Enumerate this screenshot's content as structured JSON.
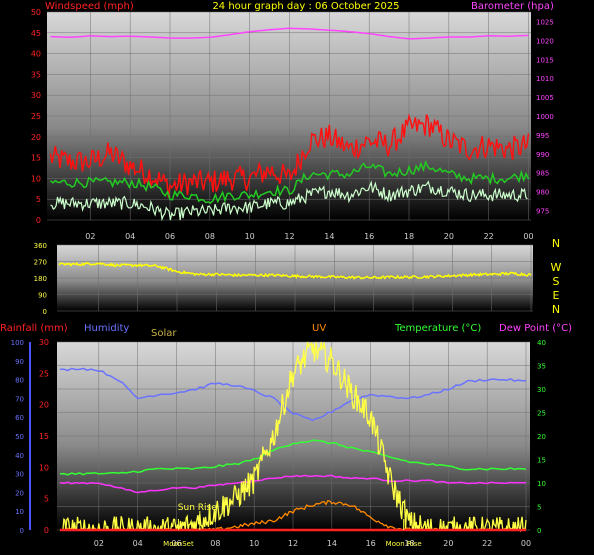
{
  "title": "24 hour graph day : 06 October 2025",
  "colors": {
    "wind_avg": "#22cc22",
    "wind_gust": "#ff1111",
    "wind_lull": "#ccffcc",
    "barometer": "#ff44ff",
    "direction": "#ffff00",
    "humidity": "#6a73ff",
    "temperature": "#33ff33",
    "dewpoint": "#ff33ff",
    "rainfall": "#ff2222",
    "solar": "#ffff44",
    "uv": "#ff8800",
    "bg_grid": "#000000",
    "label_compass": "#ffff00"
  },
  "chart_data": [
    {
      "type": "line",
      "panel": "wind-barometer",
      "x_ticks": [
        "02",
        "04",
        "06",
        "08",
        "10",
        "12",
        "14",
        "16",
        "18",
        "20",
        "22",
        "00"
      ],
      "left_axis": {
        "label": "Windspeed (mph)",
        "ticks": [
          "50",
          "45",
          "40",
          "35",
          "30",
          "25",
          "20",
          "15",
          "10",
          "5",
          "0"
        ],
        "ylim": [
          0,
          50
        ]
      },
      "right_axis": {
        "label": "Barometer (hpa)",
        "ticks": [
          "1025",
          "1020",
          "1015",
          "1010",
          "1005",
          "1000",
          "995",
          "990",
          "985",
          "980",
          "975"
        ],
        "ylim": [
          972.5,
          1027.5
        ]
      },
      "hours": [
        0,
        1,
        2,
        3,
        4,
        5,
        6,
        7,
        8,
        9,
        10,
        11,
        12,
        13,
        14,
        15,
        16,
        17,
        18,
        19,
        20,
        21,
        22,
        23,
        24
      ],
      "series": [
        {
          "name": "gust",
          "values": [
            15,
            14,
            14,
            16,
            13,
            11,
            8,
            9,
            9,
            10,
            10,
            12,
            10,
            19,
            20,
            17,
            19,
            18,
            22,
            23,
            19,
            17,
            18,
            17,
            18
          ]
        },
        {
          "name": "average",
          "values": [
            9,
            9,
            9,
            9,
            9,
            8,
            6,
            6,
            5,
            6,
            6,
            7,
            7,
            11,
            11,
            11,
            13,
            11,
            12,
            13,
            11,
            10,
            10,
            10,
            11
          ]
        },
        {
          "name": "lull",
          "values": [
            4,
            4,
            4,
            4,
            4,
            3,
            1,
            2,
            2,
            3,
            3,
            4,
            4,
            6,
            7,
            6,
            8,
            6,
            7,
            8,
            7,
            6,
            6,
            6,
            6
          ]
        },
        {
          "name": "barometer",
          "values": [
            1021.0,
            1020.8,
            1021.2,
            1021.0,
            1021.1,
            1020.9,
            1020.6,
            1020.6,
            1020.8,
            1021.5,
            1022.3,
            1022.8,
            1023.2,
            1023.0,
            1022.7,
            1022.3,
            1021.8,
            1021.0,
            1020.4,
            1020.6,
            1020.9,
            1020.9,
            1021.2,
            1021.1,
            1021.3
          ]
        }
      ]
    },
    {
      "type": "line",
      "panel": "wind-direction",
      "labels_right": [
        "N",
        "W",
        "S",
        "E",
        "N"
      ],
      "left_axis": {
        "ticks": [
          "360",
          "270",
          "180",
          "90",
          "0"
        ],
        "ylim": [
          0,
          360
        ]
      },
      "hours": [
        0,
        1,
        2,
        3,
        4,
        5,
        6,
        7,
        8,
        9,
        10,
        11,
        12,
        13,
        14,
        15,
        16,
        17,
        18,
        19,
        20,
        21,
        22,
        23,
        24
      ],
      "series": [
        {
          "name": "direction",
          "values": [
            255,
            255,
            260,
            248,
            250,
            245,
            215,
            200,
            200,
            195,
            196,
            195,
            190,
            188,
            185,
            183,
            182,
            185,
            185,
            188,
            192,
            198,
            200,
            205,
            198
          ]
        }
      ]
    },
    {
      "type": "line",
      "panel": "atmosphere",
      "x_ticks": [
        "02",
        "04",
        "06",
        "08",
        "10",
        "12",
        "14",
        "16",
        "18",
        "20",
        "22",
        "00"
      ],
      "header_labels": [
        "Rainfall (mm)",
        "Humidity",
        "Solar",
        "UV",
        "Temperature (°C)",
        "Dew Point (°C)"
      ],
      "left_axis_humidity": {
        "ticks": [
          "100",
          "90",
          "80",
          "70",
          "60",
          "50",
          "40",
          "30",
          "20",
          "10",
          "0"
        ],
        "ylim": [
          0,
          100
        ]
      },
      "left_axis_rain": {
        "ticks": [
          "30",
          "25",
          "20",
          "15",
          "10",
          "5",
          "0"
        ],
        "ylim": [
          0,
          30
        ]
      },
      "right_axis_temp": {
        "ticks": [
          "40",
          "35",
          "30",
          "25",
          "20",
          "15",
          "10",
          "5",
          "0"
        ],
        "ylim": [
          0,
          40
        ]
      },
      "annotations": [
        {
          "text": "Sun Rise",
          "hour": 7.2
        },
        {
          "text": "MoonSet",
          "hour": 6.1
        },
        {
          "text": "Moon Rise",
          "hour": 17.7
        }
      ],
      "hours": [
        0,
        1,
        2,
        3,
        4,
        5,
        6,
        7,
        8,
        9,
        10,
        11,
        12,
        13,
        14,
        15,
        16,
        17,
        18,
        19,
        20,
        21,
        22,
        23,
        24
      ],
      "series": [
        {
          "name": "humidity",
          "values": [
            85,
            86,
            85,
            80,
            70,
            72,
            73,
            75,
            78,
            77,
            74,
            70,
            62,
            58,
            63,
            69,
            72,
            71,
            70,
            72,
            75,
            79,
            80,
            80,
            79
          ]
        },
        {
          "name": "temperature",
          "values": [
            12,
            12,
            12,
            12,
            12.5,
            13,
            13,
            13,
            13.5,
            14,
            15,
            17,
            18.5,
            19,
            18.5,
            17.5,
            16.5,
            15.5,
            14.5,
            14,
            13.5,
            13,
            13,
            13,
            13
          ]
        },
        {
          "name": "dewpoint",
          "values": [
            10,
            10,
            10,
            9,
            8,
            8.5,
            9,
            9,
            9.5,
            10,
            10.5,
            11,
            11.5,
            11.5,
            11.5,
            11,
            11,
            10.5,
            10.5,
            10.5,
            10,
            10,
            10,
            10,
            10
          ]
        },
        {
          "name": "solar",
          "values": [
            0,
            0,
            0,
            0,
            0,
            0,
            0,
            1,
            3,
            5,
            8,
            15,
            25,
            29,
            27,
            22,
            18,
            8,
            1,
            0,
            0,
            0,
            0,
            0,
            0
          ]
        },
        {
          "name": "uv",
          "values": [
            0,
            0,
            0,
            0,
            0,
            0,
            0,
            0,
            0,
            0.5,
            1,
            1.5,
            3,
            4,
            4.5,
            4,
            2,
            0.5,
            0,
            0,
            0,
            0,
            0,
            0,
            0
          ]
        },
        {
          "name": "rainfall",
          "values": [
            0,
            0,
            0,
            0,
            0,
            0,
            0,
            0,
            0,
            0,
            0,
            0,
            0,
            0,
            0,
            0,
            0,
            0,
            0,
            0,
            0,
            0,
            0,
            0,
            0
          ]
        }
      ]
    }
  ]
}
